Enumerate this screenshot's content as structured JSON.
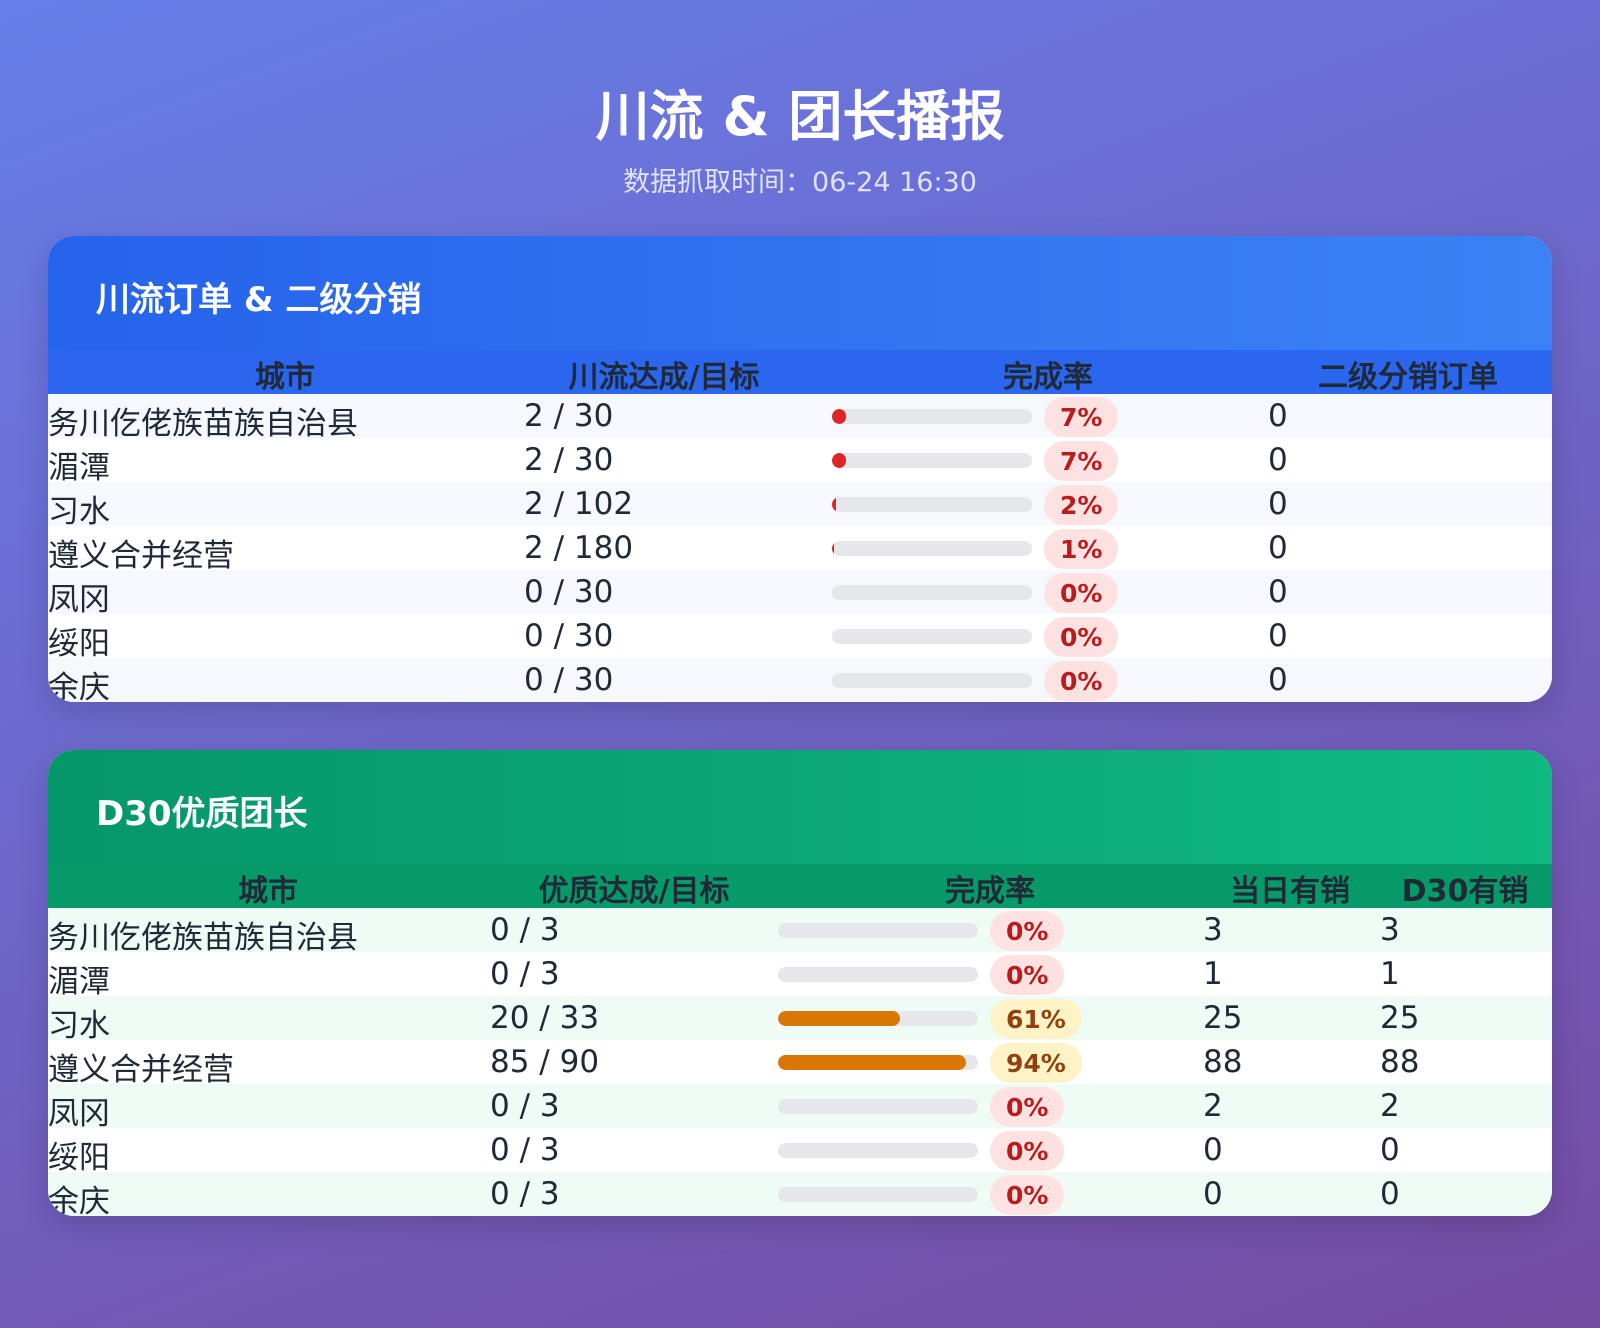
{
  "header": {
    "title": "川流 & 团长播报",
    "subtitle": "数据抓取时间：06-24 16:30"
  },
  "sections": [
    {
      "title": "川流订单 & 二级分销",
      "columns": [
        "城市",
        "川流达成/目标",
        "完成率",
        "二级分销订单"
      ],
      "rows": [
        [
          "务川仡佬族苗族自治县",
          "2 / 30",
          {
            "value": 7,
            "label": "7%"
          },
          0
        ],
        [
          "湄潭",
          "2 / 30",
          {
            "value": 7,
            "label": "7%"
          },
          0
        ],
        [
          "习水",
          "2 / 102",
          {
            "value": 2,
            "label": "2%"
          },
          0
        ],
        [
          "遵义合并经营",
          "2 / 180",
          {
            "value": 1,
            "label": "1%"
          },
          0
        ],
        [
          "凤冈",
          "0 / 30",
          {
            "value": 0,
            "label": "0%"
          },
          0
        ],
        [
          "绥阳",
          "0 / 30",
          {
            "value": 0,
            "label": "0%"
          },
          0
        ],
        [
          "余庆",
          "0 / 30",
          {
            "value": 0,
            "label": "0%"
          },
          0
        ]
      ]
    },
    {
      "title": "D30优质团长",
      "columns": [
        "城市",
        "优质达成/目标",
        "完成率",
        "当日有销",
        "D30有销"
      ],
      "rows": [
        [
          "务川仡佬族苗族自治县",
          "0 / 3",
          {
            "value": 0,
            "label": "0%"
          },
          3,
          3
        ],
        [
          "湄潭",
          "0 / 3",
          {
            "value": 0,
            "label": "0%"
          },
          1,
          1
        ],
        [
          "习水",
          "20 / 33",
          {
            "value": 61,
            "label": "61%"
          },
          25,
          25
        ],
        [
          "遵义合并经营",
          "85 / 90",
          {
            "value": 94,
            "label": "94%"
          },
          88,
          88
        ],
        [
          "凤冈",
          "0 / 3",
          {
            "value": 0,
            "label": "0%"
          },
          2,
          2
        ],
        [
          "绥阳",
          "0 / 3",
          {
            "value": 0,
            "label": "0%"
          },
          0,
          0
        ],
        [
          "余庆",
          "0 / 3",
          {
            "value": 0,
            "label": "0%"
          },
          0,
          0
        ]
      ]
    }
  ]
}
